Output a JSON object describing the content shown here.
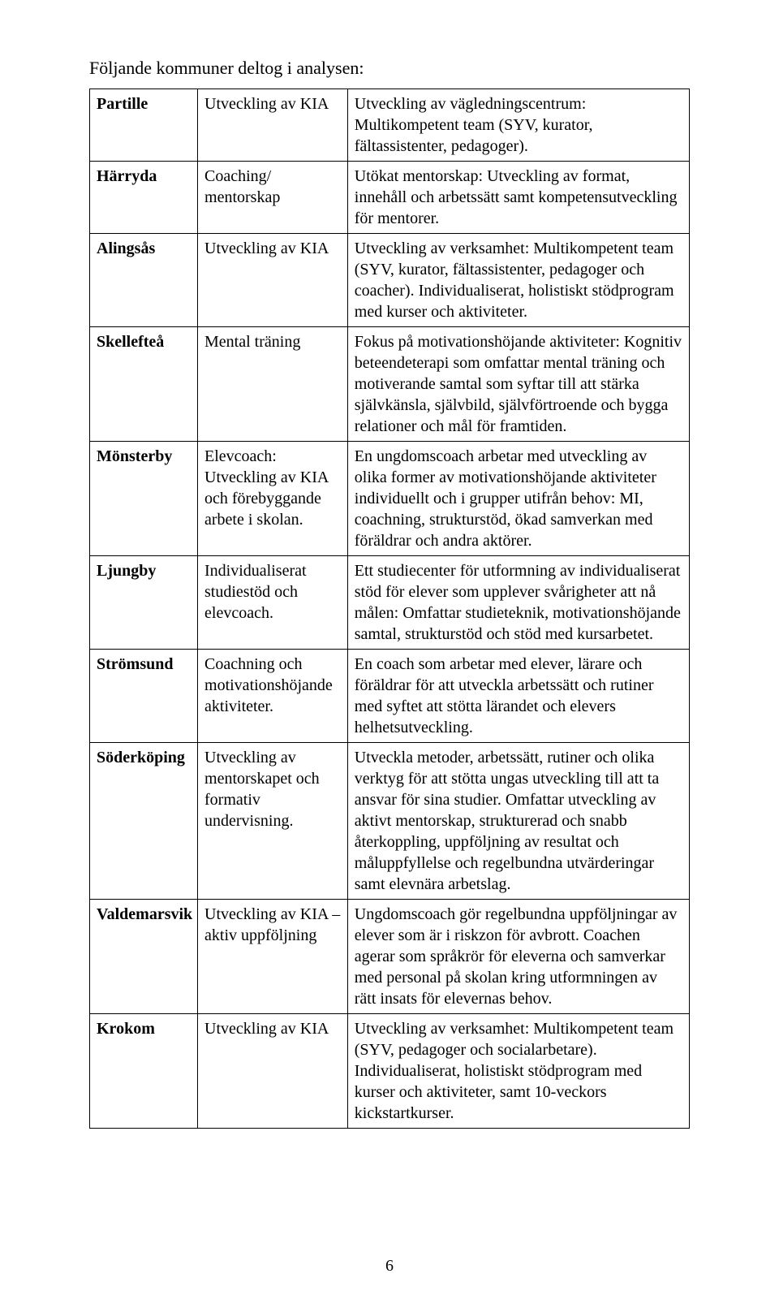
{
  "intro": "Följande kommuner deltog i analysen:",
  "page_number": "6",
  "table": {
    "rows": [
      {
        "c1": {
          "bold": true,
          "text": "Partille"
        },
        "c2": {
          "bold": false,
          "text": "Utveckling av KIA"
        },
        "c3": {
          "bold": false,
          "text": "Utveckling av vägledningscentrum: Multikompetent team (SYV, kurator, fältassistenter, pedagoger)."
        }
      },
      {
        "c1": {
          "bold": true,
          "text": "Härryda"
        },
        "c2": {
          "bold": false,
          "text": "Coaching/ mentorskap"
        },
        "c3": {
          "bold": false,
          "text": "Utökat mentorskap: Utveckling av format, innehåll och arbetssätt samt kompetensutveckling för mentorer."
        }
      },
      {
        "c1": {
          "bold": true,
          "text": "Alingsås"
        },
        "c2": {
          "bold": false,
          "text": "Utveckling av KIA"
        },
        "c3": {
          "bold": false,
          "text": "Utveckling av verksamhet: Multikompetent team (SYV, kurator, fältassistenter, pedagoger och coacher). Individualiserat, holistiskt stödprogram med kurser och aktiviteter."
        }
      },
      {
        "c1": {
          "bold": true,
          "text": "Skellefteå"
        },
        "c2": {
          "bold": false,
          "text": "Mental träning"
        },
        "c3": {
          "bold": false,
          "text": "Fokus på motivationshöjande aktiviteter: Kognitiv beteendeterapi som omfattar mental träning och motiverande samtal som syftar till att stärka självkänsla, självbild, självförtroende och bygga relationer och mål för framtiden."
        }
      },
      {
        "c1": {
          "bold": true,
          "text": "Mönsterby"
        },
        "c2": {
          "bold": false,
          "text": "Elevcoach: Utveckling av KIA och förebyggande arbete i skolan."
        },
        "c3": {
          "bold": false,
          "text": "En ungdomscoach arbetar med utveckling av olika former av motivationshöjande aktiviteter individuellt och i grupper utifrån behov: MI, coachning, strukturstöd, ökad samverkan med föräldrar och andra aktörer."
        }
      },
      {
        "c1": {
          "bold": true,
          "text": "Ljungby"
        },
        "c2": {
          "bold": false,
          "text": "Individualiserat studiestöd och elevcoach."
        },
        "c3": {
          "bold": false,
          "text": "Ett studiecenter för utformning av individualiserat stöd för elever som upplever svårigheter att nå målen: Omfattar studieteknik, motivationshöjande samtal, strukturstöd och stöd med kursarbetet."
        }
      },
      {
        "c1": {
          "bold": true,
          "text": "Strömsund"
        },
        "c2": {
          "bold": false,
          "text": "Coachning och motivationshöjande aktiviteter."
        },
        "c3": {
          "bold": false,
          "text": "En coach som arbetar med elever, lärare och föräldrar för att utveckla arbetssätt och rutiner med syftet att stötta lärandet och elevers helhetsutveckling."
        }
      },
      {
        "c1": {
          "bold": true,
          "text": "Söderköping"
        },
        "c2": {
          "bold": false,
          "text": "Utveckling av mentorskapet och formativ undervisning."
        },
        "c3": {
          "bold": false,
          "text": "Utveckla metoder, arbetssätt, rutiner och olika verktyg för att stötta ungas utveckling till att ta ansvar för sina studier. Omfattar utveckling av aktivt mentorskap, strukturerad och snabb återkoppling, uppföljning av resultat och måluppfyllelse och regelbundna utvärderingar samt elevnära arbetslag."
        }
      },
      {
        "c1": {
          "bold": true,
          "text": "Valdemarsvik"
        },
        "c2": {
          "bold": false,
          "text": "Utveckling av KIA –aktiv uppföljning"
        },
        "c3": {
          "bold": false,
          "text": "Ungdomscoach gör regelbundna uppföljningar av elever som är i riskzon för avbrott. Coachen agerar som språkrör för eleverna och samverkar med personal på skolan kring utformningen av rätt insats för elevernas behov."
        }
      },
      {
        "c1": {
          "bold": true,
          "text": "Krokom"
        },
        "c2": {
          "bold": false,
          "text": "Utveckling av KIA"
        },
        "c3": {
          "bold": false,
          "text": "Utveckling av verksamhet: Multikompetent team (SYV, pedagoger och socialarbetare). Individualiserat, holistiskt stödprogram med kurser och aktiviteter, samt 10-veckors kickstartkurser."
        }
      }
    ]
  }
}
